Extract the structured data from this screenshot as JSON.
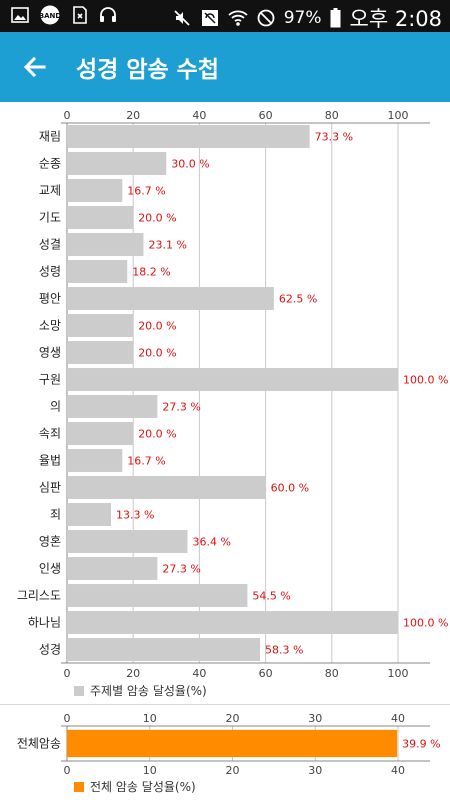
{
  "status_bar": {
    "icons": [
      "image-icon",
      "band-icon",
      "sim-icon",
      "headphones-icon",
      "mute-icon",
      "sync-icon",
      "wifi-icon",
      "dnd-icon",
      "battery-icon"
    ],
    "band_text": "BAND",
    "battery": "97%",
    "time": "오후 2:08"
  },
  "app_bar": {
    "title": "성경 암송 수첩",
    "back_icon": "arrow-left-icon",
    "color": "#1e9fd4"
  },
  "chart_data": [
    {
      "type": "bar",
      "orientation": "horizontal",
      "categories": [
        "재림",
        "순종",
        "교제",
        "기도",
        "성결",
        "성령",
        "평안",
        "소망",
        "영생",
        "구원",
        "의",
        "속죄",
        "율법",
        "심판",
        "죄",
        "영혼",
        "인생",
        "그리스도",
        "하나님",
        "성경"
      ],
      "values": [
        73.3,
        30.0,
        16.7,
        20.0,
        23.1,
        18.2,
        62.5,
        20.0,
        20.0,
        100.0,
        27.3,
        20.0,
        16.7,
        60.0,
        13.3,
        36.4,
        27.3,
        54.5,
        100.0,
        58.3
      ],
      "value_labels": [
        "73.3 %",
        "30.0 %",
        "16.7 %",
        "20.0 %",
        "23.1 %",
        "18.2 %",
        "62.5 %",
        "20.0 %",
        "20.0 %",
        "100.0 %",
        "27.3 %",
        "20.0 %",
        "16.7 %",
        "60.0 %",
        "13.3 %",
        "36.4 %",
        "27.3 %",
        "54.5 %",
        "100.0 %",
        "58.3 %"
      ],
      "ticks": [
        "0",
        "20",
        "40",
        "60",
        "80",
        "100"
      ],
      "tick_values": [
        0,
        20,
        40,
        60,
        80,
        100
      ],
      "xlim": [
        0,
        100
      ],
      "grid": true,
      "axis_position": "top-and-bottom",
      "legend": "주제별 암송 달성율(%)",
      "legend_placement": "bottom",
      "bar_color": "#cccccc",
      "label_color": "#e01010"
    },
    {
      "type": "bar",
      "orientation": "horizontal",
      "categories": [
        "전체암송"
      ],
      "values": [
        39.9
      ],
      "value_labels": [
        "39.9 %"
      ],
      "ticks": [
        "0",
        "10",
        "20",
        "30",
        "40"
      ],
      "tick_values": [
        0,
        10,
        20,
        30,
        40
      ],
      "xlim": [
        0,
        40
      ],
      "grid": true,
      "axis_position": "top-and-bottom",
      "legend": "전체 암송 달성율(%)",
      "legend_placement": "bottom",
      "bar_color": "#ff8c00",
      "label_color": "#e01010"
    }
  ]
}
